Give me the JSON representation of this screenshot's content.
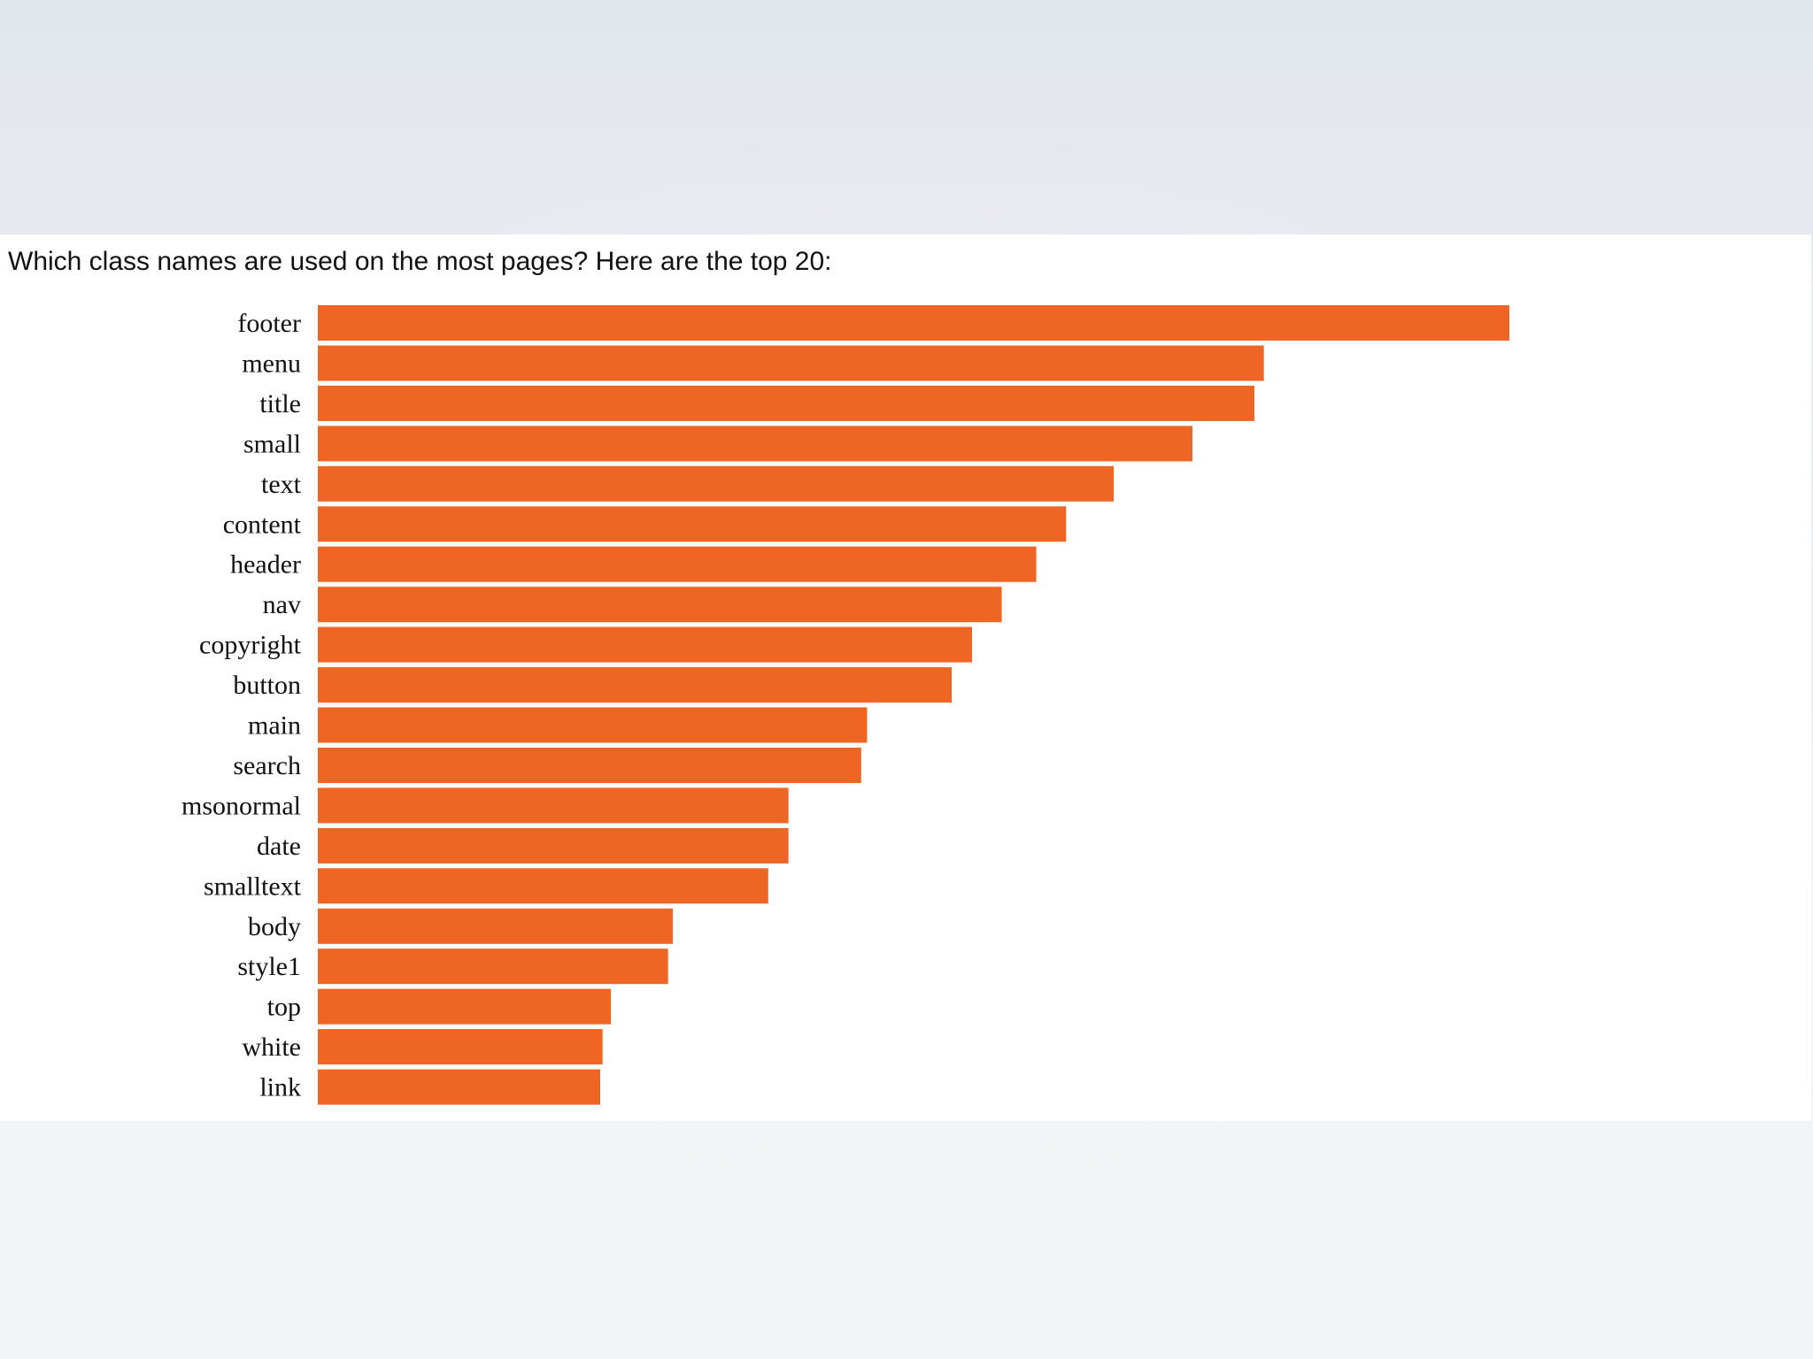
{
  "slide": {
    "heading": "Which class names are used on the most pages? Here are the top 20:"
  },
  "colors": {
    "bar": "#ee6524",
    "background": "#e8ebf0",
    "panel": "#ffffff",
    "text": "#111111"
  },
  "chart_data": {
    "type": "bar",
    "orientation": "horizontal",
    "title": "Which class names are used on the most pages? Here are the top 20:",
    "xlabel": "",
    "ylabel": "",
    "grid": false,
    "legend": "none",
    "value_axis": "not shown",
    "categories": [
      "footer",
      "menu",
      "title",
      "small",
      "text",
      "content",
      "header",
      "nav",
      "copyright",
      "button",
      "main",
      "search",
      "msonormal",
      "date",
      "smalltext",
      "body",
      "style1",
      "top",
      "white",
      "link"
    ],
    "values": [
      100,
      79.4,
      78.6,
      73.4,
      66.8,
      62.8,
      60.3,
      57.4,
      54.9,
      53.2,
      46.1,
      45.6,
      39.5,
      39.5,
      37.8,
      29.8,
      29.4,
      24.6,
      23.9,
      23.7
    ]
  }
}
